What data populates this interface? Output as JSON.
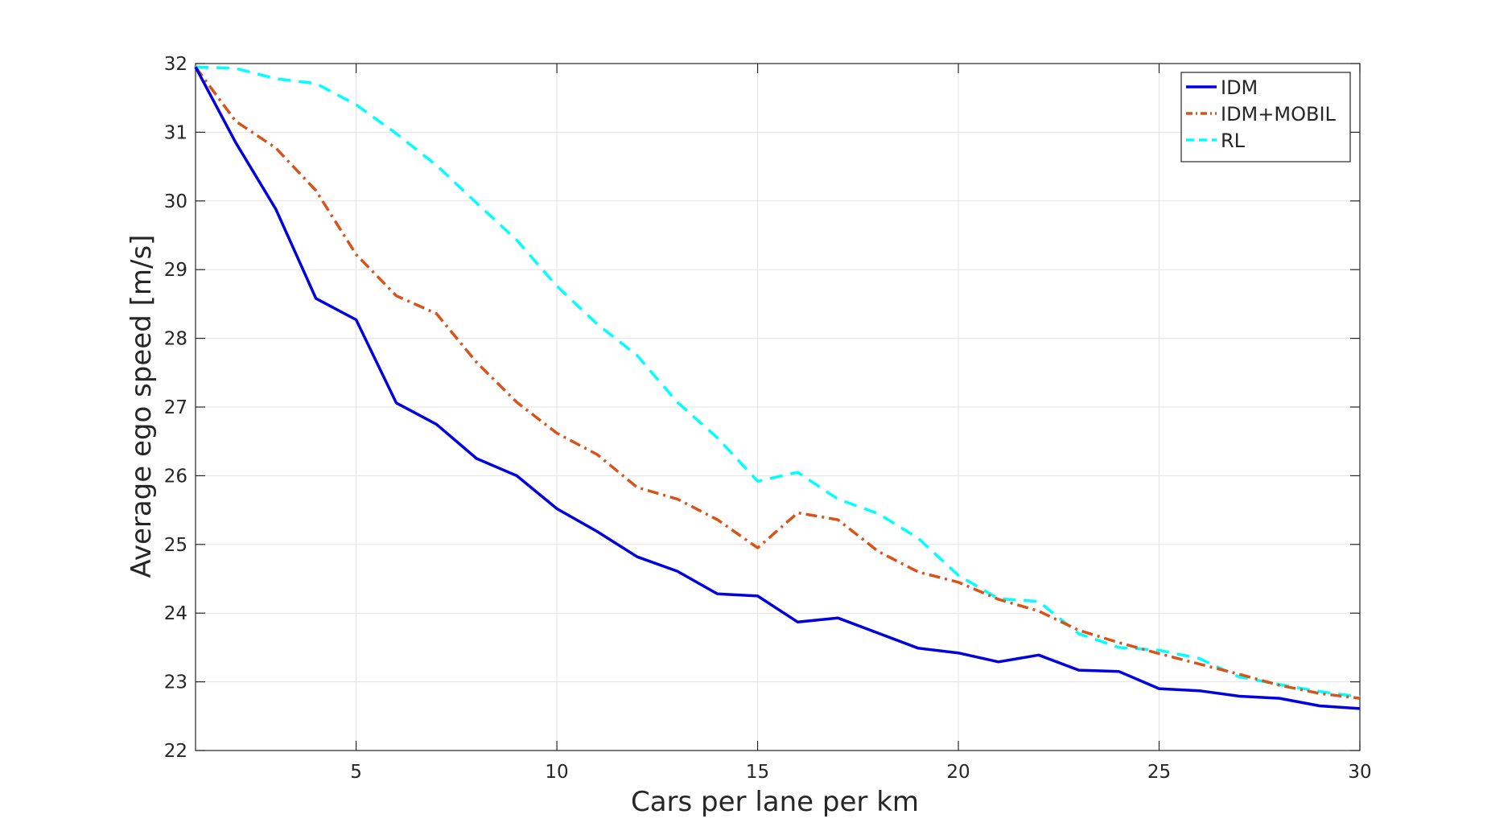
{
  "chart_data": {
    "type": "line",
    "title": "",
    "xlabel": "Cars per lane per km",
    "ylabel": "Average ego speed [m/s]",
    "xlim": [
      1,
      30
    ],
    "ylim": [
      22,
      32
    ],
    "xticks": [
      5,
      10,
      15,
      20,
      25,
      30
    ],
    "yticks": [
      22,
      23,
      24,
      25,
      26,
      27,
      28,
      29,
      30,
      31,
      32
    ],
    "grid": true,
    "legend_position": "top-right",
    "x": [
      1,
      2,
      3,
      4,
      5,
      6,
      7,
      8,
      9,
      10,
      11,
      12,
      13,
      14,
      15,
      16,
      17,
      18,
      19,
      20,
      21,
      22,
      23,
      24,
      25,
      26,
      27,
      28,
      29,
      30
    ],
    "series": [
      {
        "name": "IDM",
        "color": "#0000e0",
        "style": "solid",
        "values": [
          31.95,
          30.85,
          29.88,
          28.58,
          28.27,
          27.06,
          26.75,
          26.25,
          26.0,
          25.52,
          25.19,
          24.82,
          24.61,
          24.28,
          24.25,
          23.87,
          23.93,
          23.71,
          23.49,
          23.42,
          23.29,
          23.39,
          23.17,
          23.15,
          22.9,
          22.87,
          22.79,
          22.76,
          22.65,
          22.61
        ]
      },
      {
        "name": "IDM+MOBIL",
        "color": "#d95319",
        "style": "dashdot",
        "values": [
          31.95,
          31.16,
          30.77,
          30.15,
          29.22,
          28.62,
          28.36,
          27.65,
          27.07,
          26.62,
          26.31,
          25.83,
          25.66,
          25.36,
          24.95,
          25.46,
          25.36,
          24.9,
          24.6,
          24.45,
          24.2,
          24.03,
          23.75,
          23.57,
          23.41,
          23.26,
          23.11,
          22.95,
          22.83,
          22.76
        ]
      },
      {
        "name": "RL",
        "color": "#00ffff",
        "style": "dashed",
        "values": [
          31.95,
          31.93,
          31.78,
          31.71,
          31.4,
          30.98,
          30.52,
          29.97,
          29.43,
          28.76,
          28.21,
          27.75,
          27.07,
          26.55,
          25.92,
          26.05,
          25.66,
          25.45,
          25.09,
          24.55,
          24.21,
          24.17,
          23.7,
          23.5,
          23.46,
          23.34,
          23.07,
          22.96,
          22.86,
          22.78
        ]
      }
    ]
  }
}
